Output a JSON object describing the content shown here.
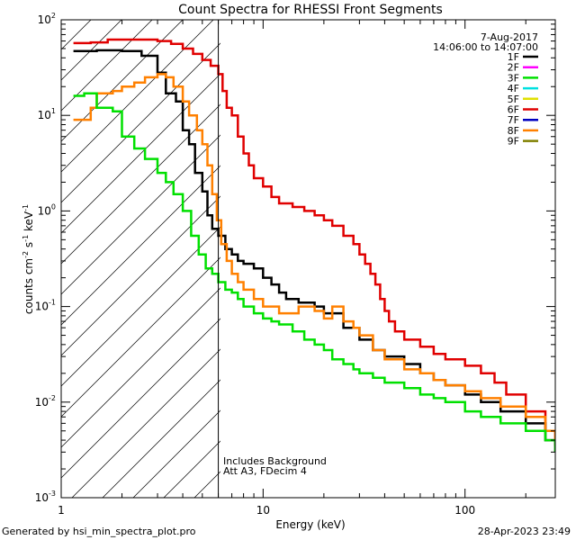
{
  "chart_data": {
    "type": "line",
    "title": "Count Spectra for RHESSI Front Segments",
    "xlabel": "Energy (keV)",
    "ylabel": "counts cm",
    "ylabel_sup1": "-2",
    "ylabel_mid": " s",
    "ylabel_sup2": "-1",
    "ylabel_end": " keV",
    "ylabel_sup3": "-1",
    "xscale": "log",
    "yscale": "log",
    "xlim": [
      1,
      280
    ],
    "ylim": [
      0.001,
      100
    ],
    "x_ticks": [
      {
        "value": 1,
        "label": "1"
      },
      {
        "value": 10,
        "label": "10"
      },
      {
        "value": 100,
        "label": "100"
      }
    ],
    "y_ticks": [
      {
        "value": 100,
        "base": "10",
        "exp": "2"
      },
      {
        "value": 10,
        "base": "10",
        "exp": "1"
      },
      {
        "value": 1,
        "base": "10",
        "exp": "0"
      },
      {
        "value": 0.1,
        "base": "10",
        "exp": "-1"
      },
      {
        "value": 0.01,
        "base": "10",
        "exp": "-2"
      },
      {
        "value": 0.001,
        "base": "10",
        "exp": "-3"
      }
    ],
    "date": "7-Aug-2017",
    "time_range": "14:06:00 to 14:07:00",
    "vertical_line_energy": 6.0,
    "hatched_region_max_energy": 6.0,
    "annotations": [
      "Includes Background",
      "Att A3, FDecim  4"
    ],
    "legend": [
      {
        "label": "1F",
        "color": "#000000"
      },
      {
        "label": "2F",
        "color": "#ff00ff"
      },
      {
        "label": "3F",
        "color": "#00e000"
      },
      {
        "label": "4F",
        "color": "#00e0e0"
      },
      {
        "label": "5F",
        "color": "#e0e000"
      },
      {
        "label": "6F",
        "color": "#e00000"
      },
      {
        "label": "7F",
        "color": "#0000c0"
      },
      {
        "label": "8F",
        "color": "#ff8000"
      },
      {
        "label": "9F",
        "color": "#808000"
      }
    ],
    "series": [
      {
        "name": "6F",
        "color": "#e00000",
        "points": [
          [
            1.15,
            57
          ],
          [
            1.4,
            58
          ],
          [
            1.7,
            62
          ],
          [
            2.0,
            62
          ],
          [
            2.5,
            62
          ],
          [
            3.0,
            60
          ],
          [
            3.5,
            56
          ],
          [
            4.0,
            50
          ],
          [
            4.5,
            44
          ],
          [
            5.0,
            38
          ],
          [
            5.5,
            33
          ],
          [
            6.0,
            27
          ],
          [
            6.3,
            18
          ],
          [
            6.6,
            12
          ],
          [
            7.0,
            10
          ],
          [
            7.5,
            6
          ],
          [
            8.0,
            4
          ],
          [
            8.5,
            3
          ],
          [
            9.0,
            2.2
          ],
          [
            10,
            1.8
          ],
          [
            11,
            1.4
          ],
          [
            12,
            1.2
          ],
          [
            14,
            1.1
          ],
          [
            16,
            1.0
          ],
          [
            18,
            0.9
          ],
          [
            20,
            0.8
          ],
          [
            22,
            0.7
          ],
          [
            25,
            0.55
          ],
          [
            28,
            0.45
          ],
          [
            30,
            0.35
          ],
          [
            32,
            0.28
          ],
          [
            34,
            0.22
          ],
          [
            36,
            0.17
          ],
          [
            38,
            0.12
          ],
          [
            40,
            0.09
          ],
          [
            42,
            0.07
          ],
          [
            45,
            0.055
          ],
          [
            50,
            0.045
          ],
          [
            60,
            0.038
          ],
          [
            70,
            0.032
          ],
          [
            80,
            0.028
          ],
          [
            100,
            0.024
          ],
          [
            120,
            0.02
          ],
          [
            140,
            0.016
          ],
          [
            160,
            0.012
          ],
          [
            200,
            0.008
          ],
          [
            250,
            0.005
          ],
          [
            280,
            0.0035
          ]
        ]
      },
      {
        "name": "1F",
        "color": "#000000",
        "points": [
          [
            1.15,
            47
          ],
          [
            1.5,
            48
          ],
          [
            2.0,
            47
          ],
          [
            2.5,
            42
          ],
          [
            3.0,
            28
          ],
          [
            3.3,
            17
          ],
          [
            3.7,
            14
          ],
          [
            4.0,
            7
          ],
          [
            4.3,
            5
          ],
          [
            4.6,
            2.5
          ],
          [
            5.0,
            1.6
          ],
          [
            5.3,
            0.9
          ],
          [
            5.6,
            0.65
          ],
          [
            6.0,
            0.55
          ],
          [
            6.5,
            0.4
          ],
          [
            7.0,
            0.35
          ],
          [
            7.5,
            0.3
          ],
          [
            8.0,
            0.28
          ],
          [
            9.0,
            0.25
          ],
          [
            10,
            0.2
          ],
          [
            11,
            0.17
          ],
          [
            12,
            0.14
          ],
          [
            13,
            0.12
          ],
          [
            15,
            0.11
          ],
          [
            18,
            0.1
          ],
          [
            20,
            0.085
          ],
          [
            25,
            0.06
          ],
          [
            30,
            0.045
          ],
          [
            35,
            0.035
          ],
          [
            40,
            0.03
          ],
          [
            50,
            0.025
          ],
          [
            60,
            0.02
          ],
          [
            70,
            0.017
          ],
          [
            80,
            0.015
          ],
          [
            100,
            0.012
          ],
          [
            120,
            0.01
          ],
          [
            150,
            0.008
          ],
          [
            200,
            0.006
          ],
          [
            250,
            0.004
          ],
          [
            280,
            0.003
          ]
        ]
      },
      {
        "name": "8F",
        "color": "#ff8000",
        "points": [
          [
            1.15,
            9
          ],
          [
            1.4,
            12
          ],
          [
            1.5,
            17
          ],
          [
            1.8,
            18
          ],
          [
            2.0,
            20
          ],
          [
            2.3,
            22
          ],
          [
            2.6,
            25
          ],
          [
            3.0,
            27
          ],
          [
            3.3,
            25
          ],
          [
            3.6,
            20
          ],
          [
            4.0,
            14
          ],
          [
            4.3,
            10
          ],
          [
            4.7,
            7
          ],
          [
            5.0,
            5
          ],
          [
            5.3,
            3
          ],
          [
            5.6,
            1.5
          ],
          [
            5.9,
            0.8
          ],
          [
            6.2,
            0.45
          ],
          [
            6.6,
            0.3
          ],
          [
            7.0,
            0.22
          ],
          [
            7.5,
            0.18
          ],
          [
            8.0,
            0.15
          ],
          [
            9.0,
            0.12
          ],
          [
            10,
            0.1
          ],
          [
            12,
            0.085
          ],
          [
            15,
            0.1
          ],
          [
            18,
            0.09
          ],
          [
            20,
            0.075
          ],
          [
            22,
            0.1
          ],
          [
            25,
            0.07
          ],
          [
            28,
            0.06
          ],
          [
            30,
            0.05
          ],
          [
            35,
            0.035
          ],
          [
            40,
            0.028
          ],
          [
            50,
            0.022
          ],
          [
            60,
            0.02
          ],
          [
            70,
            0.017
          ],
          [
            80,
            0.015
          ],
          [
            100,
            0.013
          ],
          [
            120,
            0.011
          ],
          [
            150,
            0.009
          ],
          [
            200,
            0.007
          ],
          [
            250,
            0.005
          ],
          [
            280,
            0.004
          ]
        ]
      },
      {
        "name": "3F",
        "color": "#00e000",
        "points": [
          [
            1.15,
            16
          ],
          [
            1.3,
            17
          ],
          [
            1.5,
            12
          ],
          [
            1.8,
            11
          ],
          [
            2.0,
            6
          ],
          [
            2.3,
            4.5
          ],
          [
            2.6,
            3.5
          ],
          [
            3.0,
            2.5
          ],
          [
            3.3,
            2.0
          ],
          [
            3.6,
            1.5
          ],
          [
            4.0,
            1.0
          ],
          [
            4.4,
            0.55
          ],
          [
            4.8,
            0.35
          ],
          [
            5.2,
            0.25
          ],
          [
            5.6,
            0.22
          ],
          [
            6.0,
            0.18
          ],
          [
            6.5,
            0.15
          ],
          [
            7.0,
            0.14
          ],
          [
            7.5,
            0.12
          ],
          [
            8.0,
            0.1
          ],
          [
            9.0,
            0.085
          ],
          [
            10,
            0.075
          ],
          [
            11,
            0.07
          ],
          [
            12,
            0.065
          ],
          [
            14,
            0.055
          ],
          [
            16,
            0.045
          ],
          [
            18,
            0.04
          ],
          [
            20,
            0.035
          ],
          [
            22,
            0.028
          ],
          [
            25,
            0.025
          ],
          [
            28,
            0.022
          ],
          [
            30,
            0.02
          ],
          [
            35,
            0.018
          ],
          [
            40,
            0.016
          ],
          [
            50,
            0.014
          ],
          [
            60,
            0.012
          ],
          [
            70,
            0.011
          ],
          [
            80,
            0.01
          ],
          [
            100,
            0.008
          ],
          [
            120,
            0.007
          ],
          [
            150,
            0.006
          ],
          [
            200,
            0.005
          ],
          [
            250,
            0.004
          ],
          [
            280,
            0.003
          ]
        ]
      }
    ]
  },
  "footer_left": "Generated by hsi_min_spectra_plot.pro",
  "footer_right": "28-Apr-2023 23:49"
}
